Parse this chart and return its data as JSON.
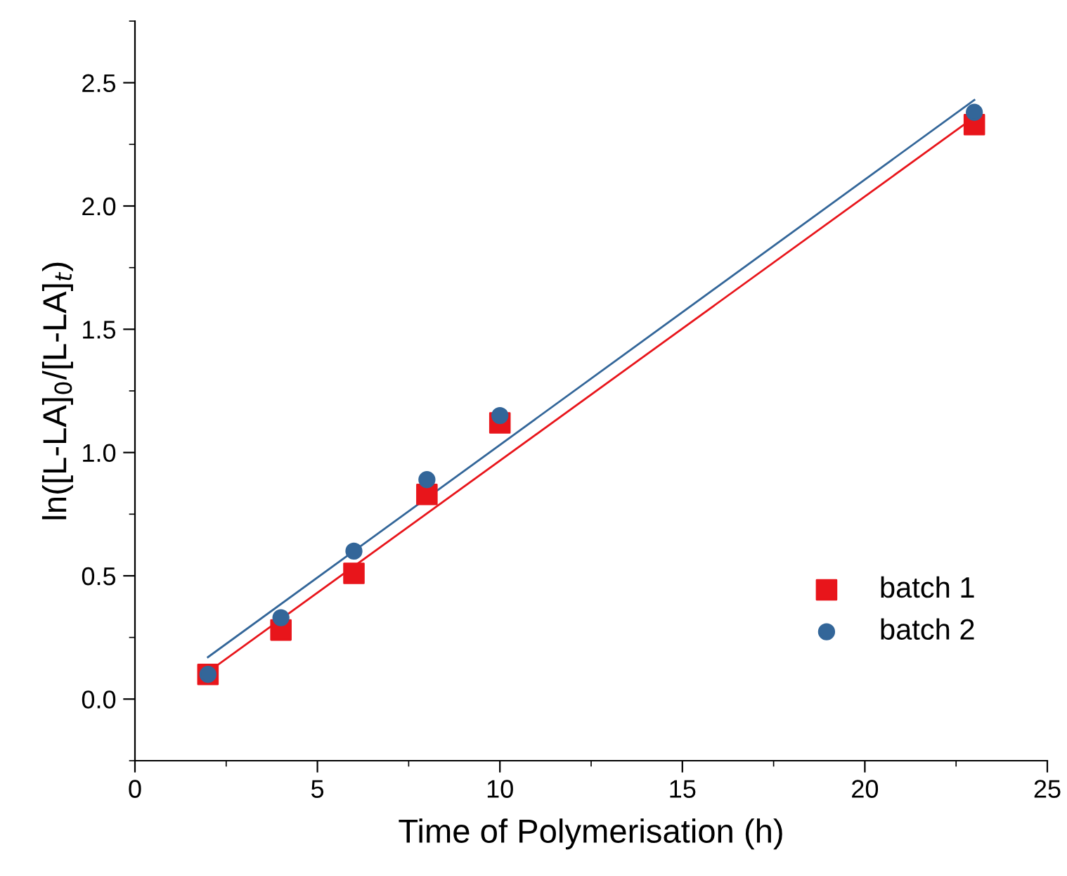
{
  "chart_data": {
    "type": "scatter",
    "xlabel": "Time of Polymerisation (h)",
    "ylabel": "ln([L-LA]$_{0}$/[L-LA]$_{t}$)",
    "series": [
      {
        "name": "batch 1",
        "color": "#e8151b",
        "marker": "square",
        "x": [
          2,
          4,
          6,
          8,
          10,
          23
        ],
        "values": [
          0.1,
          0.28,
          0.51,
          0.83,
          1.12,
          2.33
        ]
      },
      {
        "name": "batch 2",
        "color": "#336699",
        "marker": "circle",
        "x": [
          2,
          4,
          6,
          8,
          10,
          23
        ],
        "values": [
          0.1,
          0.33,
          0.6,
          0.89,
          1.15,
          2.38
        ]
      },
      {
        "type": "line",
        "color": "#e8151b",
        "x": [
          2,
          23
        ],
        "values": [
          0.11,
          2.36
        ]
      },
      {
        "type": "line",
        "color": "#336699",
        "x": [
          2,
          23
        ],
        "values": [
          0.17,
          2.43
        ]
      }
    ],
    "xlim": [
      0,
      25
    ],
    "xticks": [
      0,
      5,
      10,
      15,
      20,
      25
    ],
    "ylim": [
      -0.25,
      2.75
    ],
    "yticks": [
      {
        "value": 0,
        "label": "0.0"
      },
      {
        "value": 0.5,
        "label": "0.5"
      },
      {
        "value": 1,
        "label": "1.0"
      },
      {
        "value": 1.5,
        "label": "1.5"
      },
      {
        "value": 2,
        "label": "2.0"
      },
      {
        "value": 2.5,
        "label": "2.5"
      }
    ],
    "legend": "bottom right",
    "grid": false
  }
}
